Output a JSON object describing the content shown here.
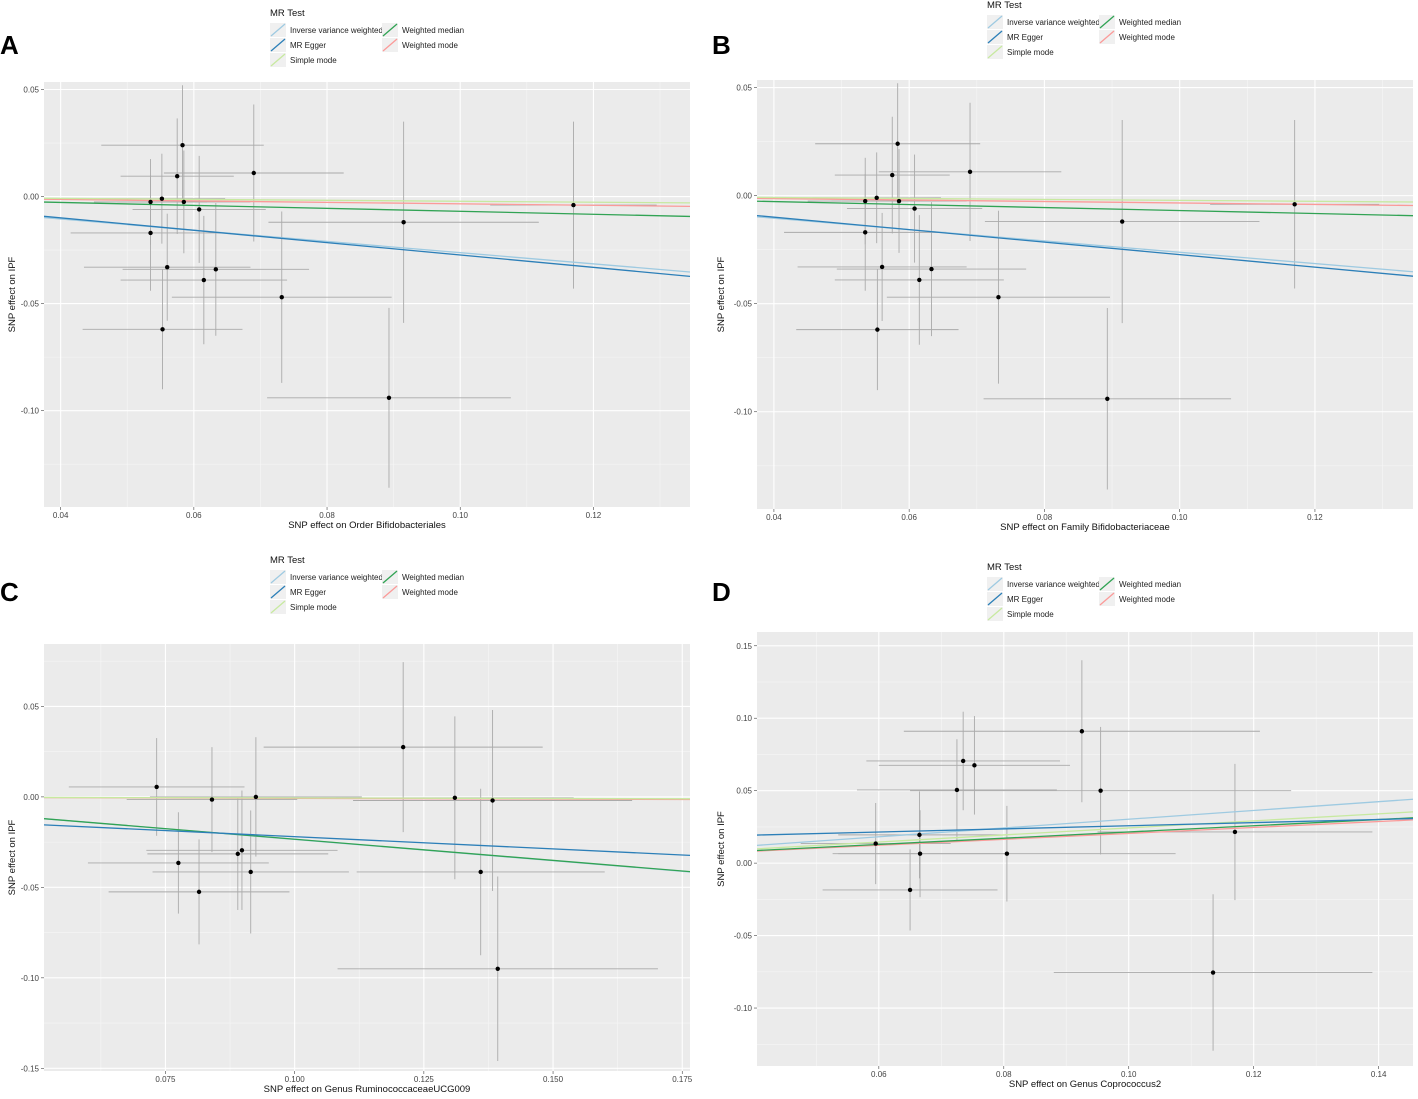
{
  "legend": {
    "title": "MR Test",
    "items": [
      {
        "label": "Inverse variance weighted",
        "color": "#9ecae1"
      },
      {
        "label": "MR Egger",
        "color": "#2c7fb8"
      },
      {
        "label": "Simple mode",
        "color": "#c7e9a0"
      },
      {
        "label": "Weighted median",
        "color": "#31a354"
      },
      {
        "label": "Weighted mode",
        "color": "#fb9a99"
      }
    ]
  },
  "chart_data": [
    {
      "panel": "A",
      "type": "scatter",
      "xlabel": "SNP effect on Order Bifidobacteriales",
      "ylabel": "SNP effect on IPF",
      "xlim": [
        0.0375,
        0.1345
      ],
      "ylim": [
        -0.145,
        0.0535
      ],
      "xticks": [
        0.04,
        0.06,
        0.08,
        0.1,
        0.12
      ],
      "xtick_labels": [
        "0.04",
        "0.06",
        "0.08",
        "0.10",
        "0.12"
      ],
      "yticks": [
        0.05,
        0.0,
        -0.05,
        -0.1
      ],
      "ytick_labels": [
        "0.05",
        "0.00",
        "-0.05",
        "-0.10"
      ],
      "points": [
        {
          "x": 0.0535,
          "y": -0.0025,
          "xerr": 0.0085,
          "yerr": 0.02
        },
        {
          "x": 0.0535,
          "y": -0.017,
          "xerr": 0.012,
          "yerr": 0.027
        },
        {
          "x": 0.0552,
          "y": -0.001,
          "xerr": 0.0095,
          "yerr": 0.021
        },
        {
          "x": 0.0553,
          "y": -0.062,
          "xerr": 0.012,
          "yerr": 0.028
        },
        {
          "x": 0.056,
          "y": -0.033,
          "xerr": 0.0125,
          "yerr": 0.025
        },
        {
          "x": 0.0575,
          "y": 0.0095,
          "xerr": 0.0085,
          "yerr": 0.027
        },
        {
          "x": 0.0583,
          "y": 0.024,
          "xerr": 0.0122,
          "yerr": 0.028
        },
        {
          "x": 0.0585,
          "y": -0.0025,
          "xerr": 0.01,
          "yerr": 0.024
        },
        {
          "x": 0.0608,
          "y": -0.006,
          "xerr": 0.01,
          "yerr": 0.025
        },
        {
          "x": 0.0615,
          "y": -0.039,
          "xerr": 0.0125,
          "yerr": 0.03
        },
        {
          "x": 0.0633,
          "y": -0.034,
          "xerr": 0.014,
          "yerr": 0.031
        },
        {
          "x": 0.069,
          "y": 0.011,
          "xerr": 0.0135,
          "yerr": 0.032
        },
        {
          "x": 0.0732,
          "y": -0.047,
          "xerr": 0.0165,
          "yerr": 0.04
        },
        {
          "x": 0.0893,
          "y": -0.094,
          "xerr": 0.0183,
          "yerr": 0.042
        },
        {
          "x": 0.0915,
          "y": -0.012,
          "xerr": 0.0203,
          "yerr": 0.047
        },
        {
          "x": 0.117,
          "y": -0.004,
          "xerr": 0.0125,
          "yerr": 0.039
        }
      ],
      "lines": [
        {
          "method": "Inverse variance weighted",
          "intercept": 0.0,
          "slope": -0.262
        },
        {
          "method": "MR Egger",
          "intercept": 0.0016,
          "slope": -0.289
        },
        {
          "method": "Simple mode",
          "intercept": 0.0,
          "slope": -0.022
        },
        {
          "method": "Weighted median",
          "intercept": 0.0,
          "slope": -0.069
        },
        {
          "method": "Weighted mode",
          "intercept": 0.0,
          "slope": -0.034
        }
      ]
    },
    {
      "panel": "B",
      "type": "scatter",
      "xlabel": "SNP effect on Family Bifidobacteriaceae",
      "ylabel": "SNP effect on IPF",
      "xlim": [
        0.0375,
        0.1345
      ],
      "ylim": [
        -0.145,
        0.0535
      ],
      "xticks": [
        0.04,
        0.06,
        0.08,
        0.1,
        0.12
      ],
      "xtick_labels": [
        "0.04",
        "0.06",
        "0.08",
        "0.10",
        "0.12"
      ],
      "yticks": [
        0.05,
        0.0,
        -0.05,
        -0.1
      ],
      "ytick_labels": [
        "0.05",
        "0.00",
        "-0.05",
        "-0.10"
      ],
      "points": [
        {
          "x": 0.0535,
          "y": -0.0025,
          "xerr": 0.0085,
          "yerr": 0.02
        },
        {
          "x": 0.0535,
          "y": -0.017,
          "xerr": 0.012,
          "yerr": 0.027
        },
        {
          "x": 0.0552,
          "y": -0.001,
          "xerr": 0.0095,
          "yerr": 0.021
        },
        {
          "x": 0.0553,
          "y": -0.062,
          "xerr": 0.012,
          "yerr": 0.028
        },
        {
          "x": 0.056,
          "y": -0.033,
          "xerr": 0.0125,
          "yerr": 0.025
        },
        {
          "x": 0.0575,
          "y": 0.0095,
          "xerr": 0.0085,
          "yerr": 0.027
        },
        {
          "x": 0.0583,
          "y": 0.024,
          "xerr": 0.0122,
          "yerr": 0.028
        },
        {
          "x": 0.0585,
          "y": -0.0025,
          "xerr": 0.01,
          "yerr": 0.024
        },
        {
          "x": 0.0608,
          "y": -0.006,
          "xerr": 0.01,
          "yerr": 0.025
        },
        {
          "x": 0.0615,
          "y": -0.039,
          "xerr": 0.0125,
          "yerr": 0.03
        },
        {
          "x": 0.0633,
          "y": -0.034,
          "xerr": 0.014,
          "yerr": 0.031
        },
        {
          "x": 0.069,
          "y": 0.011,
          "xerr": 0.0135,
          "yerr": 0.032
        },
        {
          "x": 0.0732,
          "y": -0.047,
          "xerr": 0.0165,
          "yerr": 0.04
        },
        {
          "x": 0.0893,
          "y": -0.094,
          "xerr": 0.0183,
          "yerr": 0.042
        },
        {
          "x": 0.0915,
          "y": -0.012,
          "xerr": 0.0203,
          "yerr": 0.047
        },
        {
          "x": 0.117,
          "y": -0.004,
          "xerr": 0.0125,
          "yerr": 0.039
        }
      ],
      "lines": [
        {
          "method": "Inverse variance weighted",
          "intercept": 0.0,
          "slope": -0.262
        },
        {
          "method": "MR Egger",
          "intercept": 0.0016,
          "slope": -0.289
        },
        {
          "method": "Simple mode",
          "intercept": 0.0,
          "slope": -0.022
        },
        {
          "method": "Weighted median",
          "intercept": 0.0,
          "slope": -0.069
        },
        {
          "method": "Weighted mode",
          "intercept": 0.0,
          "slope": -0.034
        }
      ]
    },
    {
      "panel": "C",
      "type": "scatter",
      "xlabel": "SNP effect on Genus RuminococcaceaeUCG009",
      "ylabel": "SNP effect on IPF",
      "xlim": [
        0.0515,
        0.1765
      ],
      "ylim": [
        -0.1515,
        0.0845
      ],
      "xticks": [
        0.075,
        0.1,
        0.125,
        0.15,
        0.175
      ],
      "xtick_labels": [
        "0.075",
        "0.100",
        "0.125",
        "0.150",
        "0.175"
      ],
      "yticks": [
        0.05,
        0.0,
        -0.05,
        -0.1,
        -0.15
      ],
      "ytick_labels": [
        "0.05",
        "0.00",
        "-0.05",
        "-0.10",
        "-0.15"
      ],
      "points": [
        {
          "x": 0.0733,
          "y": 0.0055,
          "xerr": 0.017,
          "yerr": 0.027
        },
        {
          "x": 0.0775,
          "y": -0.0365,
          "xerr": 0.0175,
          "yerr": 0.028
        },
        {
          "x": 0.0815,
          "y": -0.0525,
          "xerr": 0.0175,
          "yerr": 0.029
        },
        {
          "x": 0.084,
          "y": -0.0015,
          "xerr": 0.0165,
          "yerr": 0.029
        },
        {
          "x": 0.089,
          "y": -0.0315,
          "xerr": 0.0175,
          "yerr": 0.031
        },
        {
          "x": 0.0898,
          "y": -0.0295,
          "xerr": 0.0185,
          "yerr": 0.033
        },
        {
          "x": 0.0915,
          "y": -0.0415,
          "xerr": 0.019,
          "yerr": 0.034
        },
        {
          "x": 0.0925,
          "y": 0.0,
          "xerr": 0.0205,
          "yerr": 0.033
        },
        {
          "x": 0.121,
          "y": 0.0275,
          "xerr": 0.027,
          "yerr": 0.047
        },
        {
          "x": 0.131,
          "y": -0.0005,
          "xerr": 0.023,
          "yerr": 0.045
        },
        {
          "x": 0.136,
          "y": -0.0415,
          "xerr": 0.024,
          "yerr": 0.046
        },
        {
          "x": 0.1383,
          "y": -0.002,
          "xerr": 0.027,
          "yerr": 0.05
        },
        {
          "x": 0.1393,
          "y": -0.095,
          "xerr": 0.031,
          "yerr": 0.051
        }
      ],
      "lines": [
        {
          "method": "Inverse variance weighted",
          "intercept": 0.0,
          "slope": -0.235
        },
        {
          "method": "MR Egger",
          "intercept": -0.0085,
          "slope": -0.135
        },
        {
          "method": "Simple mode",
          "intercept": 0.0,
          "slope": -0.006
        },
        {
          "method": "Weighted median",
          "intercept": 0.0,
          "slope": -0.234
        },
        {
          "method": "Weighted mode",
          "intercept": 0.0,
          "slope": -0.008
        }
      ]
    },
    {
      "panel": "D",
      "type": "scatter",
      "xlabel": "SNP effect on Genus Coprococcus2",
      "ylabel": "SNP effect on IPF",
      "xlim": [
        0.0405,
        0.1455
      ],
      "ylim": [
        -0.14,
        0.1595
      ],
      "xticks": [
        0.06,
        0.08,
        0.1,
        0.12,
        0.14
      ],
      "xtick_labels": [
        "0.06",
        "0.08",
        "0.10",
        "0.12",
        "0.14"
      ],
      "yticks": [
        0.15,
        0.1,
        0.05,
        0.0,
        -0.05,
        -0.1
      ],
      "ytick_labels": [
        "0.15",
        "0.10",
        "0.05",
        "0.00",
        "-0.05",
        "-0.10"
      ],
      "points": [
        {
          "x": 0.0595,
          "y": 0.0135,
          "xerr": 0.012,
          "yerr": 0.028
        },
        {
          "x": 0.065,
          "y": -0.0185,
          "xerr": 0.014,
          "yerr": 0.028
        },
        {
          "x": 0.0665,
          "y": 0.0195,
          "xerr": 0.013,
          "yerr": 0.03
        },
        {
          "x": 0.0666,
          "y": 0.0065,
          "xerr": 0.014,
          "yerr": 0.03
        },
        {
          "x": 0.0725,
          "y": 0.0505,
          "xerr": 0.016,
          "yerr": 0.035
        },
        {
          "x": 0.0735,
          "y": 0.0705,
          "xerr": 0.0155,
          "yerr": 0.034
        },
        {
          "x": 0.0753,
          "y": 0.0675,
          "xerr": 0.0153,
          "yerr": 0.034
        },
        {
          "x": 0.0805,
          "y": 0.0065,
          "xerr": 0.027,
          "yerr": 0.033
        },
        {
          "x": 0.0925,
          "y": 0.091,
          "xerr": 0.0285,
          "yerr": 0.049
        },
        {
          "x": 0.0955,
          "y": 0.05,
          "xerr": 0.0305,
          "yerr": 0.044
        },
        {
          "x": 0.1135,
          "y": -0.0755,
          "xerr": 0.0255,
          "yerr": 0.054
        },
        {
          "x": 0.117,
          "y": 0.0215,
          "xerr": 0.022,
          "yerr": 0.047
        }
      ],
      "lines": [
        {
          "method": "Inverse variance weighted",
          "intercept": 0.0,
          "slope": 0.303
        },
        {
          "method": "MR Egger",
          "intercept": 0.015,
          "slope": 0.108
        },
        {
          "method": "Simple mode",
          "intercept": 0.0,
          "slope": 0.243
        },
        {
          "method": "Weighted median",
          "intercept": 0.0,
          "slope": 0.215
        },
        {
          "method": "Weighted mode",
          "intercept": 0.0,
          "slope": 0.205
        }
      ]
    }
  ]
}
